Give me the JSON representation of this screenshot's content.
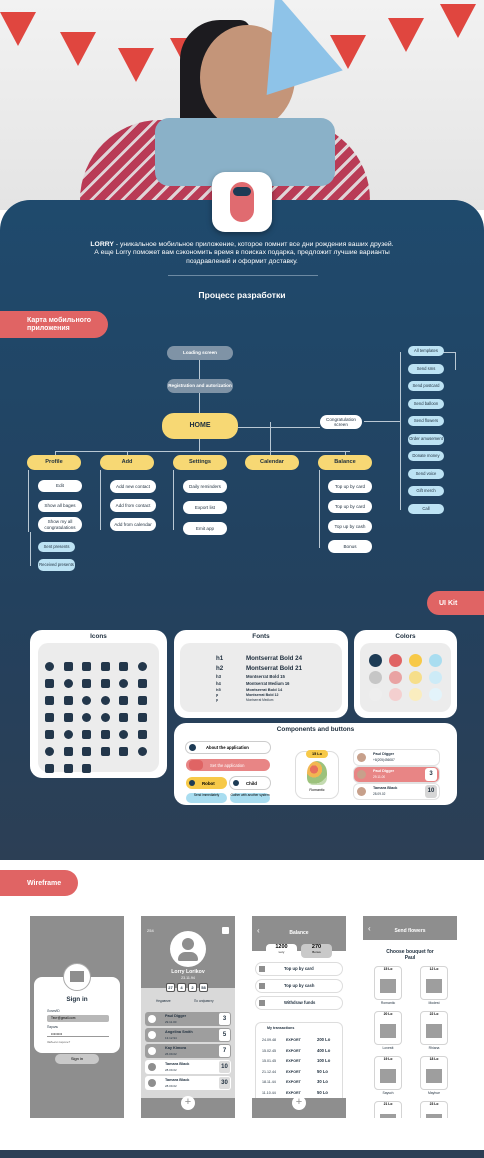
{
  "intro": {
    "brand": "LORRY",
    "text": " - уникальное мобильное приложение, которое помнит все дни рождения ваших друзей. А еще Lorry поможет вам сэкономить время в поисках подарка, предложит лучшие варианты поздравлений и оформит доставку."
  },
  "process_title": "Процесс разработки",
  "sections": {
    "map": "Карта мобильного приложения",
    "uikit": "UI Kit",
    "wireframe": "Wireframe"
  },
  "mindmap": {
    "loading": "Loading screen",
    "registration": "Registration and autorization",
    "home": "HOME",
    "congrats": "Congratulation screen",
    "main": [
      "Profile",
      "Add",
      "Settings",
      "Calendar",
      "Balance"
    ],
    "profile": [
      "Edit",
      "Show all bages",
      "Show my all congratulations"
    ],
    "profile_sub": [
      "Sent presents",
      "Received presents"
    ],
    "add": [
      "Add new contact",
      "Add from contact",
      "Add from calendar"
    ],
    "settings": [
      "Daily reminders",
      "Export list",
      "Emit app"
    ],
    "balance": [
      "Top up by card",
      "Top up by card",
      "Top up by cash",
      "Bonus"
    ],
    "congrats_list": [
      "All templates",
      "Send sms",
      "Send postcard",
      "Send balloon",
      "Send flowers",
      "Order amusement",
      "Donate money",
      "Send voice",
      "Gift merch",
      "Call"
    ]
  },
  "uikit": {
    "icons_title": "Icons",
    "fonts_title": "Fonts",
    "colors_title": "Colors",
    "components_title": "Components and buttons",
    "fonts": [
      {
        "tag": "h1",
        "name": "Montserrat Bold 24"
      },
      {
        "tag": "h2",
        "name": "Montserrat Bold 21"
      },
      {
        "tag": "h3",
        "name": "Montserrat Bold 15"
      },
      {
        "tag": "h4",
        "name": "Montserrat Medium 16"
      },
      {
        "tag": "h5",
        "name": "Montserrat Bold 14"
      },
      {
        "tag": "p",
        "name": "Montserrat Bold 12"
      },
      {
        "tag": "p",
        "name": "Montserrat Medium"
      }
    ],
    "colors": [
      "#1d3b55",
      "#e06464",
      "#f7c948",
      "#a9ddf0",
      "#c6c6c6",
      "#e9a3a3",
      "#f6de8a",
      "#cdebf7",
      "#eeeeee",
      "#f4cfcf",
      "#faedbf",
      "#e3f4fb"
    ],
    "components": {
      "about": "About the application",
      "set": "Set the application",
      "robot": "Robot",
      "child": "Child",
      "send_immediately": "Send immediately",
      "gather": "Gather with another system",
      "price": "15 Lo",
      "product": "Romantic",
      "contacts": [
        {
          "name": "Paul Digger",
          "sub": "+8(205)456087",
          "days": ""
        },
        {
          "name": "Paul Digger",
          "sub": "29.11.00",
          "days": "3"
        },
        {
          "name": "Tamara Black",
          "sub": "28.09.02",
          "days": "10"
        }
      ]
    }
  },
  "wireframe": {
    "signin": {
      "title": "Sign in",
      "login_label": "Логин/ID",
      "login_value": "Тест@gmail.com",
      "password_label": "Пароль",
      "password_value": "••••••••",
      "forgot": "Забыли пароль?",
      "button": "Sign in"
    },
    "profile": {
      "balance": "254",
      "name": "Lorry Lorikov",
      "date": "23.11.94",
      "stats": [
        "27",
        "4",
        "2",
        "58"
      ],
      "filters": [
        "Недавние",
        "По алфавиту"
      ],
      "rows": [
        {
          "name": "Paul Digger",
          "date": "29.11.00",
          "days": "3"
        },
        {
          "name": "Angelina Smith",
          "date": "13.12.94",
          "days": "5"
        },
        {
          "name": "Kay Kimora",
          "date": "26.09.02",
          "days": "7"
        },
        {
          "name": "Tamara Black",
          "date": "28.09.02",
          "days": "10"
        },
        {
          "name": "Tamara Black",
          "date": "28.09.02",
          "days": "30"
        }
      ]
    },
    "balance": {
      "title": "Balance",
      "lo": "1200",
      "lo_label": "Lory",
      "bonus": "270",
      "bonus_label": "Bonus",
      "items": [
        "Top up by card",
        "Top up by cash",
        "Withdraw funds"
      ],
      "tx_title": "My transactions",
      "tx": [
        {
          "date": "24.09.48",
          "type": "EXPORT",
          "amount": "200 Lo"
        },
        {
          "date": "15.02.45",
          "type": "EXPORT",
          "amount": "400 Lo"
        },
        {
          "date": "15.01.45",
          "type": "EXPORT",
          "amount": "100 Lo"
        },
        {
          "date": "21.12.44",
          "type": "EXPORT",
          "amount": "50 Lo"
        },
        {
          "date": "18.11.44",
          "type": "EXPORT",
          "amount": "30 Lo"
        },
        {
          "date": "11.10.44",
          "type": "EXPORT",
          "amount": "50 Lo"
        }
      ]
    },
    "flowers": {
      "title": "Send flowers",
      "subtitle": "Choose bouquet for Paul",
      "items": [
        {
          "price": "15 Lo",
          "name": "Romantic"
        },
        {
          "price": "12 Lo",
          "name": "Modest"
        },
        {
          "price": "20 Lo",
          "name": "Lovestt"
        },
        {
          "price": "22 Lo",
          "name": "Rhiana"
        },
        {
          "price": "19 Lo",
          "name": "Saysch"
        },
        {
          "price": "18 Lo",
          "name": "Mayhue"
        },
        {
          "price": "21 Lo",
          "name": ""
        },
        {
          "price": "23 Lo",
          "name": ""
        }
      ]
    }
  }
}
